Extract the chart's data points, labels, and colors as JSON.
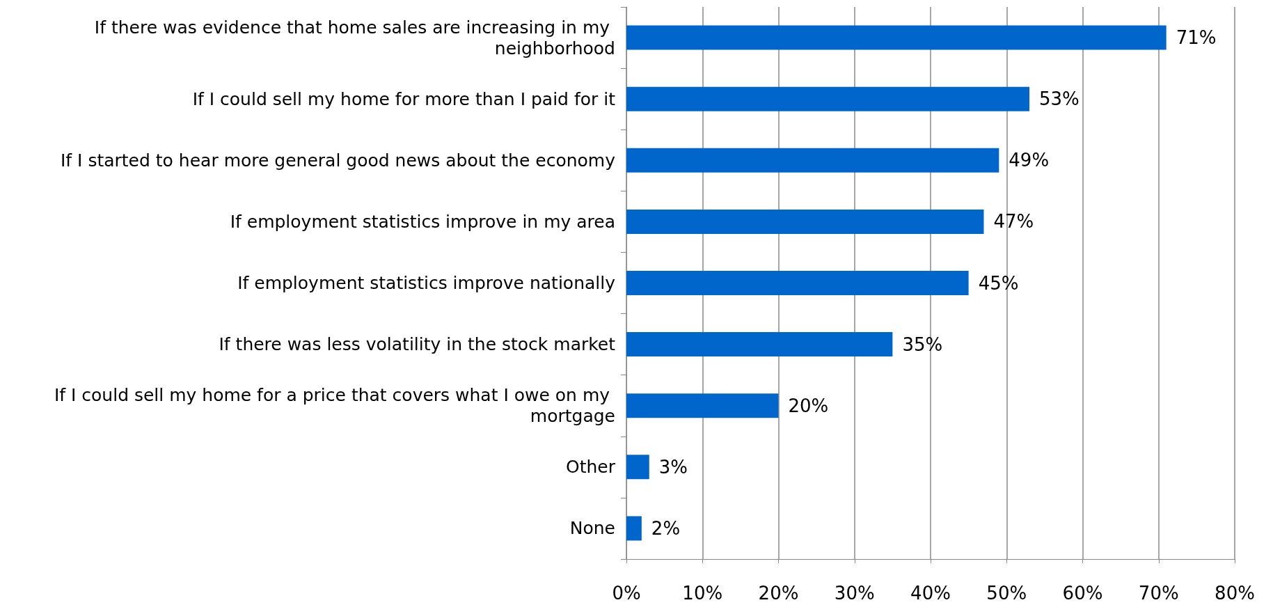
{
  "chart_data": {
    "type": "bar",
    "orientation": "horizontal",
    "categories": [
      "If there was evidence that home sales are increasing in my neighborhood",
      "If I could sell my home for more than I paid for it",
      "If I started to hear more general good news about the economy",
      "If employment statistics improve in my area",
      "If employment statistics improve nationally",
      "If there was less volatility in the stock market",
      "If I could sell my home for a price that covers what I owe on my mortgage",
      "Other",
      "None"
    ],
    "values": [
      71,
      53,
      49,
      47,
      45,
      35,
      20,
      3,
      2
    ],
    "value_labels": [
      "71%",
      "53%",
      "49%",
      "47%",
      "45%",
      "35%",
      "20%",
      "3%",
      "2%"
    ],
    "color": "#0066cc",
    "xlim": [
      0,
      80
    ],
    "xticks": [
      {
        "value": 0,
        "label": "0%"
      },
      {
        "value": 10,
        "label": "10%"
      },
      {
        "value": 20,
        "label": "20%"
      },
      {
        "value": 30,
        "label": "30%"
      },
      {
        "value": 40,
        "label": "40%"
      },
      {
        "value": 50,
        "label": "50%"
      },
      {
        "value": 60,
        "label": "60%"
      },
      {
        "value": 70,
        "label": "70%"
      },
      {
        "value": 80,
        "label": "80%"
      }
    ],
    "grid": "x"
  }
}
